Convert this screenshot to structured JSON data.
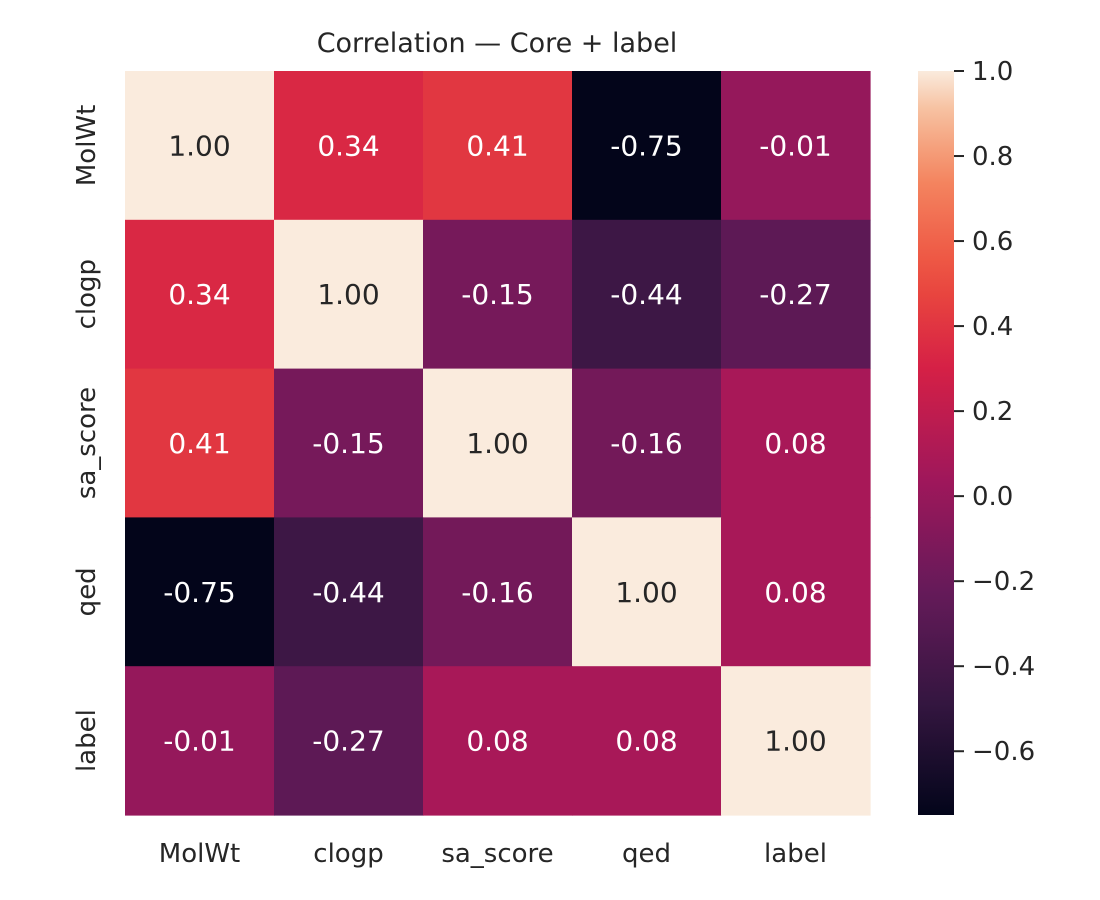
{
  "chart_data": {
    "type": "heatmap",
    "title": "Correlation — Core + label",
    "xlabel": "",
    "ylabel": "",
    "x_categories": [
      "MolWt",
      "clogp",
      "sa_score",
      "qed",
      "label"
    ],
    "y_categories": [
      "MolWt",
      "clogp",
      "sa_score",
      "qed",
      "label"
    ],
    "values": [
      [
        1.0,
        0.34,
        0.41,
        -0.75,
        -0.01
      ],
      [
        0.34,
        1.0,
        -0.15,
        -0.44,
        -0.27
      ],
      [
        0.41,
        -0.15,
        1.0,
        -0.16,
        0.08
      ],
      [
        -0.75,
        -0.44,
        -0.16,
        1.0,
        0.08
      ],
      [
        -0.01,
        -0.27,
        0.08,
        0.08,
        1.0
      ]
    ],
    "value_format": "0.00",
    "colormap": "rocket",
    "colorbar": {
      "vmin": -0.75,
      "vmax": 1.0,
      "ticks": [
        -0.6,
        -0.4,
        -0.2,
        0.0,
        0.2,
        0.4,
        0.6,
        0.8,
        1.0
      ],
      "tick_labels": [
        "−0.6",
        "−0.4",
        "−0.2",
        "0.0",
        "0.2",
        "0.4",
        "0.6",
        "0.8",
        "1.0"
      ]
    },
    "grid": false
  }
}
